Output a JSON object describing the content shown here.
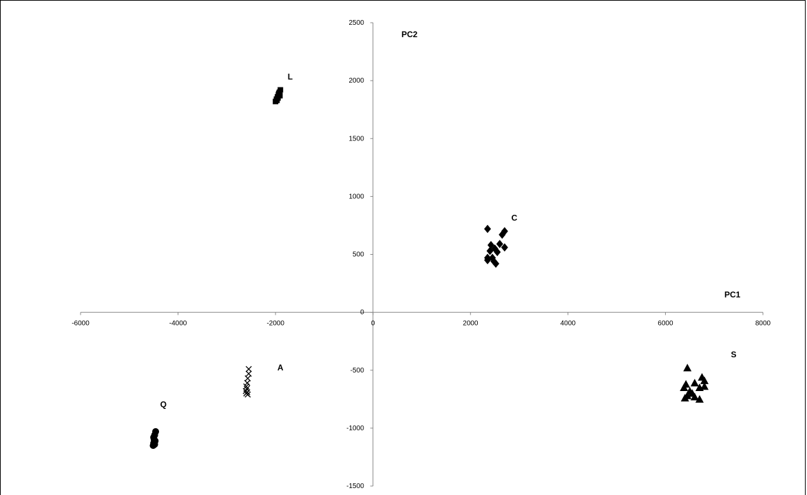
{
  "chart_data": {
    "type": "scatter",
    "title": "",
    "xlabel": "PC1",
    "ylabel": "PC2",
    "xlim": [
      -6000,
      8000
    ],
    "ylim": [
      -1500,
      2500
    ],
    "xticks": [
      -6000,
      -4000,
      -2000,
      0,
      2000,
      4000,
      6000,
      8000
    ],
    "yticks": [
      -1500,
      -1000,
      -500,
      0,
      500,
      1000,
      1500,
      2000,
      2500
    ],
    "xtick_labels": [
      "-6000",
      "-4000",
      "-2000",
      "0",
      "2000",
      "4000",
      "6000",
      "8000"
    ],
    "ytick_labels": [
      "-1500",
      "-1000",
      "-500",
      "0",
      "500",
      "1000",
      "1500",
      "2000",
      "2500"
    ],
    "grid": false,
    "legend": "none",
    "series": [
      {
        "label": "L",
        "marker": "square",
        "color": "#000000",
        "points": [
          [
            -2000,
            1820
          ],
          [
            -1980,
            1840
          ],
          [
            -1960,
            1860
          ],
          [
            -1940,
            1880
          ],
          [
            -1920,
            1900
          ],
          [
            -1900,
            1920
          ],
          [
            -1910,
            1870
          ],
          [
            -1950,
            1850
          ],
          [
            -1970,
            1830
          ],
          [
            -1930,
            1890
          ]
        ]
      },
      {
        "label": "C",
        "marker": "diamond",
        "color": "#000000",
        "points": [
          [
            2350,
            720
          ],
          [
            2700,
            700
          ],
          [
            2650,
            670
          ],
          [
            2420,
            580
          ],
          [
            2600,
            590
          ],
          [
            2700,
            560
          ],
          [
            2500,
            550
          ],
          [
            2400,
            530
          ],
          [
            2550,
            520
          ],
          [
            2350,
            470
          ],
          [
            2450,
            470
          ],
          [
            2350,
            450
          ],
          [
            2480,
            440
          ],
          [
            2520,
            420
          ]
        ]
      },
      {
        "label": "S",
        "marker": "triangle",
        "color": "#000000",
        "points": [
          [
            6450,
            -480
          ],
          [
            6750,
            -560
          ],
          [
            6800,
            -590
          ],
          [
            6420,
            -620
          ],
          [
            6600,
            -610
          ],
          [
            6380,
            -650
          ],
          [
            6500,
            -680
          ],
          [
            6700,
            -650
          ],
          [
            6800,
            -640
          ],
          [
            6550,
            -700
          ],
          [
            6450,
            -720
          ],
          [
            6400,
            -740
          ],
          [
            6600,
            -730
          ],
          [
            6700,
            -750
          ]
        ]
      },
      {
        "label": "A",
        "marker": "x",
        "color": "#000000",
        "points": [
          [
            -2550,
            -490
          ],
          [
            -2550,
            -530
          ],
          [
            -2570,
            -570
          ],
          [
            -2580,
            -610
          ],
          [
            -2600,
            -640
          ],
          [
            -2590,
            -660
          ],
          [
            -2610,
            -680
          ],
          [
            -2580,
            -690
          ],
          [
            -2600,
            -700
          ],
          [
            -2570,
            -710
          ]
        ]
      },
      {
        "label": "Q",
        "marker": "circle",
        "color": "#000000",
        "points": [
          [
            -4460,
            -1030
          ],
          [
            -4480,
            -1060
          ],
          [
            -4500,
            -1080
          ],
          [
            -4490,
            -1100
          ],
          [
            -4470,
            -1110
          ],
          [
            -4500,
            -1130
          ],
          [
            -4510,
            -1150
          ],
          [
            -4480,
            -1140
          ]
        ]
      }
    ],
    "annotations": [
      {
        "text": "L",
        "x": -1700,
        "y": 2010
      },
      {
        "text": "C",
        "x": 2900,
        "y": 790
      },
      {
        "text": "S",
        "x": 7400,
        "y": -390
      },
      {
        "text": "A",
        "x": -1900,
        "y": -500
      },
      {
        "text": "Q",
        "x": -4300,
        "y": -820
      }
    ]
  }
}
